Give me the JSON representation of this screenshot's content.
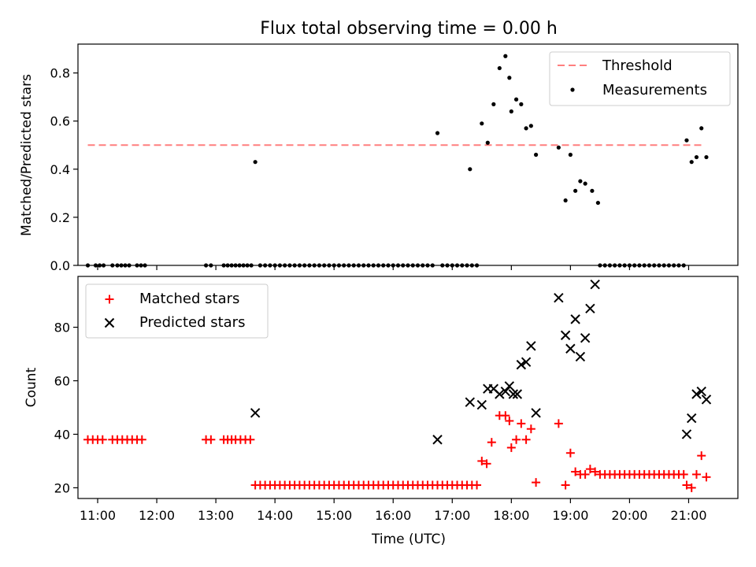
{
  "title": "Flux total observing time = 0.00 h",
  "chart_data": [
    {
      "type": "scatter",
      "ylabel": "Matched/Predicted stars",
      "xlim": [
        "10:40",
        "21:50"
      ],
      "ylim": [
        0,
        0.92
      ],
      "yticks": [
        "0.0",
        "0.2",
        "0.4",
        "0.6",
        "0.8"
      ],
      "yticks_values": [
        0,
        0.2,
        0.4,
        0.6,
        0.8
      ],
      "legend_placement": "upper right",
      "grid": false,
      "threshold": {
        "name": "Threshold",
        "value": 0.5,
        "from": "10:50",
        "to": "21:15",
        "color": "#ff7f7f",
        "style": "dashed"
      },
      "measurements": {
        "name": "Measurements",
        "color": "#000000",
        "points": [
          [
            "10:50",
            0
          ],
          [
            "10:58",
            0
          ],
          [
            "11:02",
            0
          ],
          [
            "11:06",
            0
          ],
          [
            "11:15",
            0
          ],
          [
            "11:20",
            0
          ],
          [
            "11:24",
            0
          ],
          [
            "11:28",
            0
          ],
          [
            "11:32",
            0
          ],
          [
            "11:40",
            0
          ],
          [
            "11:44",
            0
          ],
          [
            "11:48",
            0
          ],
          [
            "12:50",
            0
          ],
          [
            "12:55",
            0
          ],
          [
            "13:08",
            0
          ],
          [
            "13:12",
            0
          ],
          [
            "13:16",
            0
          ],
          [
            "13:20",
            0
          ],
          [
            "13:24",
            0
          ],
          [
            "13:28",
            0
          ],
          [
            "13:32",
            0
          ],
          [
            "13:36",
            0
          ],
          [
            "13:40",
            0.43
          ],
          [
            "13:45",
            0
          ],
          [
            "13:50",
            0
          ],
          [
            "13:55",
            0
          ],
          [
            "14:00",
            0
          ],
          [
            "14:05",
            0
          ],
          [
            "14:10",
            0
          ],
          [
            "14:15",
            0
          ],
          [
            "14:20",
            0
          ],
          [
            "14:25",
            0
          ],
          [
            "14:30",
            0
          ],
          [
            "14:35",
            0
          ],
          [
            "14:40",
            0
          ],
          [
            "14:45",
            0
          ],
          [
            "14:50",
            0
          ],
          [
            "14:55",
            0
          ],
          [
            "15:00",
            0
          ],
          [
            "15:05",
            0
          ],
          [
            "15:10",
            0
          ],
          [
            "15:15",
            0
          ],
          [
            "15:20",
            0
          ],
          [
            "15:25",
            0
          ],
          [
            "15:30",
            0
          ],
          [
            "15:35",
            0
          ],
          [
            "15:40",
            0
          ],
          [
            "15:45",
            0
          ],
          [
            "15:50",
            0
          ],
          [
            "15:55",
            0
          ],
          [
            "16:00",
            0
          ],
          [
            "16:05",
            0
          ],
          [
            "16:10",
            0
          ],
          [
            "16:15",
            0
          ],
          [
            "16:20",
            0
          ],
          [
            "16:25",
            0
          ],
          [
            "16:30",
            0
          ],
          [
            "16:35",
            0
          ],
          [
            "16:40",
            0
          ],
          [
            "16:45",
            0.55
          ],
          [
            "16:50",
            0
          ],
          [
            "16:55",
            0
          ],
          [
            "17:00",
            0
          ],
          [
            "17:05",
            0
          ],
          [
            "17:10",
            0
          ],
          [
            "17:15",
            0
          ],
          [
            "17:20",
            0
          ],
          [
            "17:25",
            0
          ],
          [
            "17:18",
            0.4
          ],
          [
            "17:30",
            0.59
          ],
          [
            "17:36",
            0.51
          ],
          [
            "17:42",
            0.67
          ],
          [
            "17:48",
            0.82
          ],
          [
            "17:54",
            0.87
          ],
          [
            "17:58",
            0.78
          ],
          [
            "18:00",
            0.64
          ],
          [
            "18:05",
            0.69
          ],
          [
            "18:10",
            0.67
          ],
          [
            "18:15",
            0.57
          ],
          [
            "18:20",
            0.58
          ],
          [
            "18:25",
            0.46
          ],
          [
            "18:48",
            0.49
          ],
          [
            "18:55",
            0.27
          ],
          [
            "19:00",
            0.46
          ],
          [
            "19:05",
            0.31
          ],
          [
            "19:10",
            0.35
          ],
          [
            "19:15",
            0.34
          ],
          [
            "19:22",
            0.31
          ],
          [
            "19:28",
            0.26
          ],
          [
            "19:30",
            0
          ],
          [
            "19:35",
            0
          ],
          [
            "19:40",
            0
          ],
          [
            "19:45",
            0
          ],
          [
            "19:50",
            0
          ],
          [
            "19:55",
            0
          ],
          [
            "20:00",
            0
          ],
          [
            "20:05",
            0
          ],
          [
            "20:10",
            0
          ],
          [
            "20:15",
            0
          ],
          [
            "20:20",
            0
          ],
          [
            "20:25",
            0
          ],
          [
            "20:30",
            0
          ],
          [
            "20:35",
            0
          ],
          [
            "20:40",
            0
          ],
          [
            "20:45",
            0
          ],
          [
            "20:50",
            0
          ],
          [
            "20:55",
            0
          ],
          [
            "20:58",
            0.52
          ],
          [
            "21:03",
            0.43
          ],
          [
            "21:08",
            0.45
          ],
          [
            "21:13",
            0.57
          ],
          [
            "21:18",
            0.45
          ]
        ]
      }
    },
    {
      "type": "scatter",
      "xlabel": "Time (UTC)",
      "ylabel": "Count",
      "xlim": [
        "10:40",
        "21:50"
      ],
      "ylim": [
        16,
        99
      ],
      "yticks": [
        "20",
        "40",
        "60",
        "80"
      ],
      "yticks_values": [
        20,
        40,
        60,
        80
      ],
      "xticks": [
        "11:00",
        "12:00",
        "13:00",
        "14:00",
        "15:00",
        "16:00",
        "17:00",
        "18:00",
        "19:00",
        "20:00",
        "21:00"
      ],
      "legend_placement": "upper left",
      "grid": false,
      "series": [
        {
          "name": "Matched stars",
          "marker": "plus",
          "color": "#ff0000",
          "points": [
            [
              "10:50",
              38
            ],
            [
              "10:55",
              38
            ],
            [
              "11:00",
              38
            ],
            [
              "11:05",
              38
            ],
            [
              "11:15",
              38
            ],
            [
              "11:20",
              38
            ],
            [
              "11:25",
              38
            ],
            [
              "11:30",
              38
            ],
            [
              "11:35",
              38
            ],
            [
              "11:40",
              38
            ],
            [
              "11:45",
              38
            ],
            [
              "12:50",
              38
            ],
            [
              "12:55",
              38
            ],
            [
              "13:08",
              38
            ],
            [
              "13:12",
              38
            ],
            [
              "13:16",
              38
            ],
            [
              "13:20",
              38
            ],
            [
              "13:25",
              38
            ],
            [
              "13:30",
              38
            ],
            [
              "13:35",
              38
            ],
            [
              "13:40",
              21
            ],
            [
              "13:45",
              21
            ],
            [
              "13:50",
              21
            ],
            [
              "13:55",
              21
            ],
            [
              "14:00",
              21
            ],
            [
              "14:05",
              21
            ],
            [
              "14:10",
              21
            ],
            [
              "14:15",
              21
            ],
            [
              "14:20",
              21
            ],
            [
              "14:25",
              21
            ],
            [
              "14:30",
              21
            ],
            [
              "14:35",
              21
            ],
            [
              "14:40",
              21
            ],
            [
              "14:45",
              21
            ],
            [
              "14:50",
              21
            ],
            [
              "14:55",
              21
            ],
            [
              "15:00",
              21
            ],
            [
              "15:05",
              21
            ],
            [
              "15:10",
              21
            ],
            [
              "15:15",
              21
            ],
            [
              "15:20",
              21
            ],
            [
              "15:25",
              21
            ],
            [
              "15:30",
              21
            ],
            [
              "15:35",
              21
            ],
            [
              "15:40",
              21
            ],
            [
              "15:45",
              21
            ],
            [
              "15:50",
              21
            ],
            [
              "15:55",
              21
            ],
            [
              "16:00",
              21
            ],
            [
              "16:05",
              21
            ],
            [
              "16:10",
              21
            ],
            [
              "16:15",
              21
            ],
            [
              "16:20",
              21
            ],
            [
              "16:25",
              21
            ],
            [
              "16:30",
              21
            ],
            [
              "16:35",
              21
            ],
            [
              "16:40",
              21
            ],
            [
              "16:45",
              21
            ],
            [
              "16:50",
              21
            ],
            [
              "16:55",
              21
            ],
            [
              "17:00",
              21
            ],
            [
              "17:05",
              21
            ],
            [
              "17:10",
              21
            ],
            [
              "17:15",
              21
            ],
            [
              "17:20",
              21
            ],
            [
              "17:25",
              21
            ],
            [
              "17:30",
              30
            ],
            [
              "17:35",
              29
            ],
            [
              "17:40",
              37
            ],
            [
              "17:48",
              47
            ],
            [
              "17:54",
              47
            ],
            [
              "17:58",
              45
            ],
            [
              "18:00",
              35
            ],
            [
              "18:05",
              38
            ],
            [
              "18:10",
              44
            ],
            [
              "18:15",
              38
            ],
            [
              "18:20",
              42
            ],
            [
              "18:25",
              22
            ],
            [
              "18:48",
              44
            ],
            [
              "18:55",
              21
            ],
            [
              "19:00",
              33
            ],
            [
              "19:05",
              26
            ],
            [
              "19:10",
              25
            ],
            [
              "19:15",
              25
            ],
            [
              "19:20",
              27
            ],
            [
              "19:25",
              26
            ],
            [
              "19:30",
              25
            ],
            [
              "19:35",
              25
            ],
            [
              "19:40",
              25
            ],
            [
              "19:45",
              25
            ],
            [
              "19:50",
              25
            ],
            [
              "19:55",
              25
            ],
            [
              "20:00",
              25
            ],
            [
              "20:05",
              25
            ],
            [
              "20:10",
              25
            ],
            [
              "20:15",
              25
            ],
            [
              "20:20",
              25
            ],
            [
              "20:25",
              25
            ],
            [
              "20:30",
              25
            ],
            [
              "20:35",
              25
            ],
            [
              "20:40",
              25
            ],
            [
              "20:45",
              25
            ],
            [
              "20:50",
              25
            ],
            [
              "20:55",
              25
            ],
            [
              "20:58",
              21
            ],
            [
              "21:03",
              20
            ],
            [
              "21:08",
              25
            ],
            [
              "21:13",
              32
            ],
            [
              "21:18",
              24
            ]
          ]
        },
        {
          "name": "Predicted stars",
          "marker": "x",
          "color": "#000000",
          "points": [
            [
              "13:40",
              48
            ],
            [
              "16:45",
              38
            ],
            [
              "17:18",
              52
            ],
            [
              "17:30",
              51
            ],
            [
              "17:36",
              57
            ],
            [
              "17:42",
              57
            ],
            [
              "17:48",
              55
            ],
            [
              "17:54",
              56
            ],
            [
              "17:58",
              58
            ],
            [
              "18:02",
              55
            ],
            [
              "18:06",
              55
            ],
            [
              "18:10",
              66
            ],
            [
              "18:15",
              67
            ],
            [
              "18:20",
              73
            ],
            [
              "18:25",
              48
            ],
            [
              "18:48",
              91
            ],
            [
              "18:55",
              77
            ],
            [
              "19:00",
              72
            ],
            [
              "19:05",
              83
            ],
            [
              "19:10",
              69
            ],
            [
              "19:15",
              76
            ],
            [
              "19:20",
              87
            ],
            [
              "19:25",
              96
            ],
            [
              "20:58",
              40
            ],
            [
              "21:03",
              46
            ],
            [
              "21:08",
              55
            ],
            [
              "21:13",
              56
            ],
            [
              "21:18",
              53
            ]
          ]
        }
      ]
    }
  ]
}
